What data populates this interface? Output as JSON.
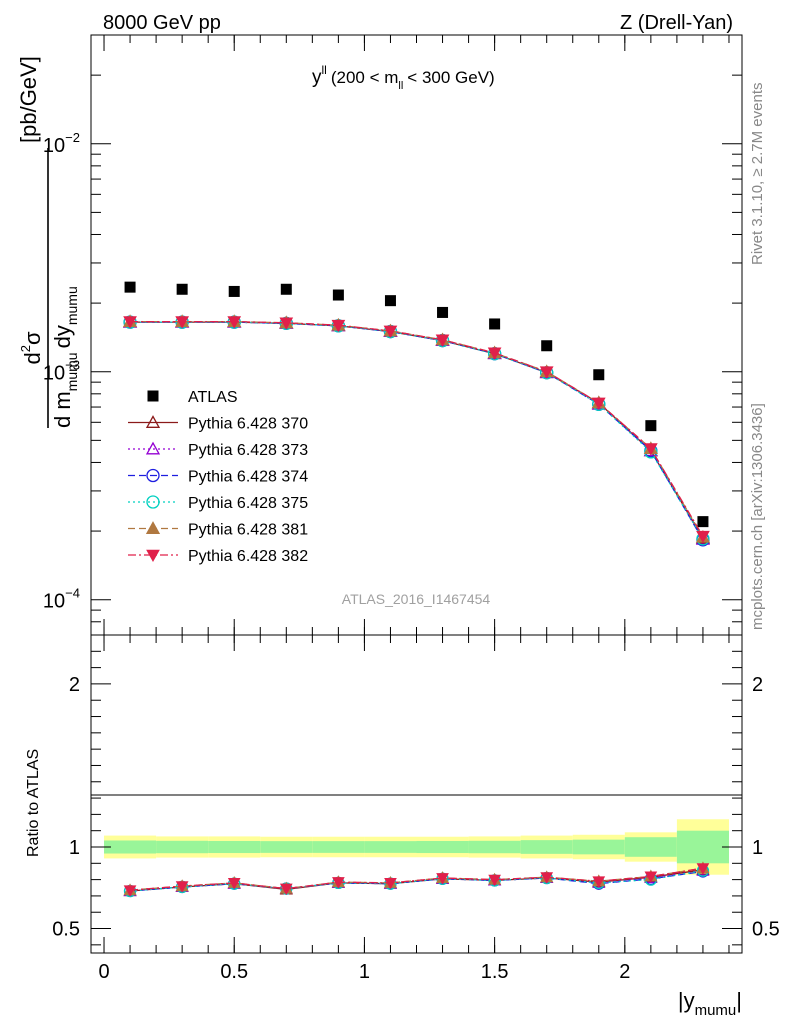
{
  "header": {
    "left_label": "8000 GeV pp",
    "right_label": "Z (Drell-Yan)"
  },
  "plot_title": {
    "main": "y",
    "main_sup": "ll",
    "range_prefix": "(200 < m",
    "range_sub": "ll",
    "range_suffix": "< 300 GeV)"
  },
  "side_labels": {
    "rivet": "Rivet 3.1.10, ≥ 2.7M events",
    "mcplots": "mcplots.cern.ch [arXiv:1306.3436]"
  },
  "watermark": "ATLAS_2016_I1467454",
  "y_axis_label": {
    "numerator_d": "d",
    "numerator_sup": "2",
    "numerator_sigma": "σ",
    "denom_d1": "d m",
    "denom_sub1": "mumu",
    "denom_d2": "dy",
    "denom_sub2": "mumu",
    "units": "[pb/GeV]"
  },
  "ratio_label": "Ratio to ATLAS",
  "x_axis_label": {
    "text": "|y",
    "sub": "mumu",
    "close": "|"
  },
  "colors": {
    "ATLAS": "#000000",
    "p370": "#8b1a1a",
    "p373": "#9400d3",
    "p374": "#1e1ee0",
    "p375": "#00d0c0",
    "p381": "#b07840",
    "p382": "#e0204a",
    "band_yellow": "#ffff99",
    "band_green": "#99f599"
  },
  "chart_data": [
    {
      "type": "scatter",
      "panel": "main",
      "yscale": "log",
      "ylim": [
        7e-05,
        0.03
      ],
      "xlim": [
        -0.05,
        2.45
      ],
      "x_ticks": [
        0,
        0.5,
        1,
        1.5,
        2
      ],
      "y_tick_labels": [
        {
          "value": 0.0001,
          "base": "10",
          "exp": "−4"
        },
        {
          "value": 0.001,
          "base": "10",
          "exp": "−3"
        },
        {
          "value": 0.01,
          "base": "10",
          "exp": "−2"
        }
      ],
      "x": [
        0.1,
        0.3,
        0.5,
        0.7,
        0.9,
        1.1,
        1.3,
        1.5,
        1.7,
        1.9,
        2.1,
        2.3
      ],
      "series": [
        {
          "name": "ATLAS",
          "key": "ATLAS",
          "values": [
            0.00235,
            0.0023,
            0.00225,
            0.0023,
            0.00217,
            0.00205,
            0.00182,
            0.00162,
            0.0013,
            0.00097,
            0.00058,
            0.00022
          ]
        },
        {
          "name": "Pythia 6.428 370",
          "key": "p370",
          "values": [
            0.00165,
            0.00165,
            0.00165,
            0.00163,
            0.00159,
            0.0015,
            0.00137,
            0.0012,
            0.00099,
            0.00073,
            0.00045,
            0.000186
          ]
        },
        {
          "name": "Pythia 6.428 373",
          "key": "p373",
          "values": [
            0.00165,
            0.00165,
            0.00165,
            0.00163,
            0.00159,
            0.0015,
            0.00137,
            0.0012,
            0.00099,
            0.00072,
            0.00045,
            0.000184
          ]
        },
        {
          "name": "Pythia 6.428 374",
          "key": "p374",
          "values": [
            0.00165,
            0.00165,
            0.00165,
            0.00163,
            0.00159,
            0.0015,
            0.00137,
            0.0012,
            0.00099,
            0.00072,
            0.00045,
            0.000183
          ]
        },
        {
          "name": "Pythia 6.428 375",
          "key": "p375",
          "values": [
            0.00165,
            0.00165,
            0.00165,
            0.00163,
            0.00159,
            0.0015,
            0.00137,
            0.0012,
            0.00099,
            0.00072,
            0.000445,
            0.000185
          ]
        },
        {
          "name": "Pythia 6.428 381",
          "key": "p381",
          "values": [
            0.00166,
            0.00166,
            0.00166,
            0.00164,
            0.0016,
            0.00151,
            0.00138,
            0.00121,
            0.001,
            0.00073,
            0.00046,
            0.000188
          ]
        },
        {
          "name": "Pythia 6.428 382",
          "key": "p382",
          "values": [
            0.00166,
            0.00166,
            0.00166,
            0.00164,
            0.0016,
            0.00151,
            0.00138,
            0.00121,
            0.001,
            0.00073,
            0.00046,
            0.00019
          ]
        }
      ]
    },
    {
      "type": "line",
      "panel": "ratio",
      "ylim": [
        0.35,
        2.3
      ],
      "xlim": [
        -0.05,
        2.45
      ],
      "y_ticks": [
        0.5,
        1,
        2
      ],
      "x": [
        0.1,
        0.3,
        0.5,
        0.7,
        0.9,
        1.1,
        1.3,
        1.5,
        1.7,
        1.9,
        2.1,
        2.3
      ],
      "bands": {
        "edges": [
          0,
          0.2,
          0.4,
          0.6,
          0.8,
          1.0,
          1.2,
          1.4,
          1.6,
          1.8,
          2.0,
          2.2,
          2.4
        ],
        "yellow_half": [
          0.07,
          0.065,
          0.065,
          0.063,
          0.063,
          0.063,
          0.063,
          0.065,
          0.07,
          0.075,
          0.09,
          0.17
        ],
        "green_half": [
          0.04,
          0.038,
          0.037,
          0.036,
          0.036,
          0.036,
          0.037,
          0.038,
          0.042,
          0.045,
          0.06,
          0.1
        ]
      },
      "series": [
        {
          "name": "Pythia 6.428 370",
          "key": "p370",
          "values": [
            0.73,
            0.755,
            0.775,
            0.74,
            0.78,
            0.775,
            0.805,
            0.795,
            0.81,
            0.785,
            0.815,
            0.86
          ]
        },
        {
          "name": "Pythia 6.428 373",
          "key": "p373",
          "values": [
            0.73,
            0.755,
            0.775,
            0.745,
            0.78,
            0.775,
            0.805,
            0.795,
            0.81,
            0.78,
            0.81,
            0.855
          ]
        },
        {
          "name": "Pythia 6.428 374",
          "key": "p374",
          "values": [
            0.73,
            0.755,
            0.775,
            0.745,
            0.78,
            0.775,
            0.805,
            0.795,
            0.81,
            0.775,
            0.805,
            0.85
          ]
        },
        {
          "name": "Pythia 6.428 375",
          "key": "p375",
          "values": [
            0.73,
            0.755,
            0.775,
            0.745,
            0.78,
            0.775,
            0.805,
            0.795,
            0.81,
            0.78,
            0.8,
            0.855
          ]
        },
        {
          "name": "Pythia 6.428 381",
          "key": "p381",
          "values": [
            0.735,
            0.76,
            0.78,
            0.745,
            0.785,
            0.78,
            0.81,
            0.8,
            0.815,
            0.79,
            0.82,
            0.87
          ]
        },
        {
          "name": "Pythia 6.428 382",
          "key": "p382",
          "values": [
            0.735,
            0.76,
            0.78,
            0.745,
            0.785,
            0.78,
            0.81,
            0.8,
            0.815,
            0.79,
            0.82,
            0.87
          ]
        }
      ]
    }
  ]
}
